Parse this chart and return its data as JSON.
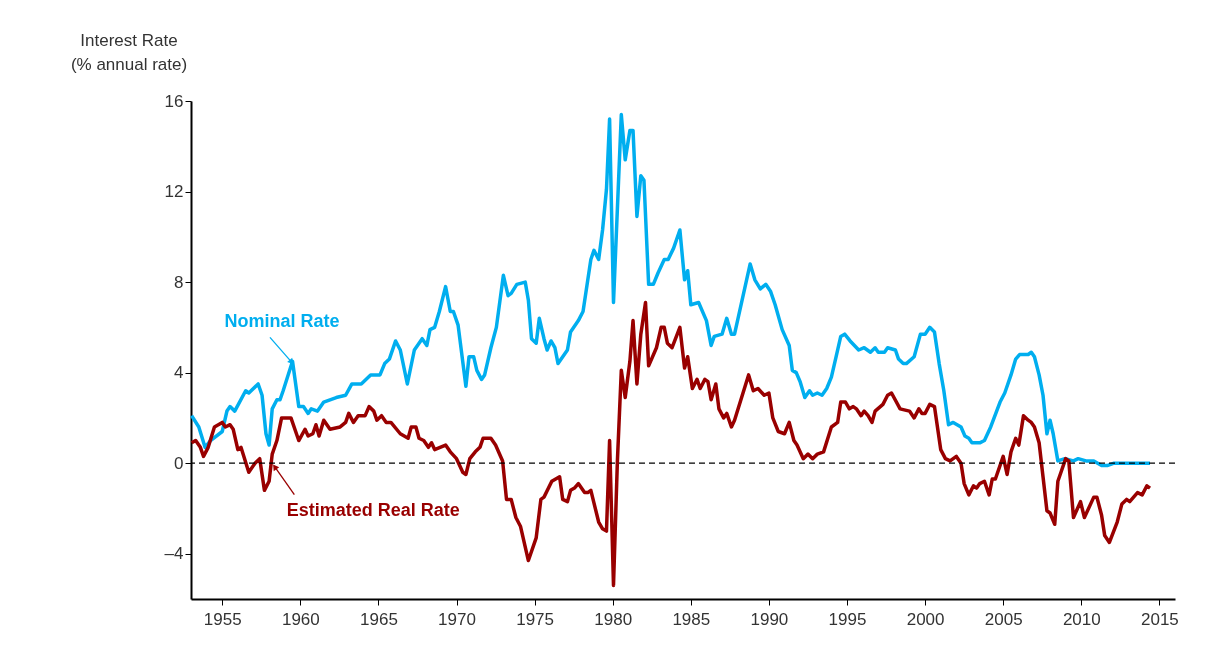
{
  "chart_data": {
    "type": "line",
    "ylabel": "Interest Rate\n(% annual rate)",
    "xlim": [
      1953,
      2016
    ],
    "xticks": [
      1955,
      1960,
      1965,
      1970,
      1975,
      1980,
      1985,
      1990,
      1995,
      2000,
      2005,
      2010,
      2015
    ],
    "ylim": [
      -6,
      16
    ],
    "yticks": [
      {
        "value": -4,
        "label": "–4"
      },
      0,
      4,
      8,
      12,
      16
    ],
    "grid": false,
    "marker": "none",
    "line_style": "solid",
    "ref_lines": [
      {
        "axis": "y",
        "value": 0,
        "color": "#000000",
        "line_style": "dashed"
      }
    ],
    "annotations": [
      {
        "text": "Nominal Rate",
        "x": 1959.4,
        "y": 4.5
      },
      {
        "text": "Estimated Real Rate",
        "x": 1958.4,
        "y": -0.2
      }
    ],
    "series": [
      {
        "color": "#00aeef",
        "x": [
          1953.04,
          1953.5,
          1953.9,
          1954.25,
          1955,
          1955.3,
          1955.5,
          1955.8,
          1956.5,
          1956.7,
          1957.3,
          1957.55,
          1957.8,
          1958.0,
          1958.2,
          1958.5,
          1958.7,
          1958.9,
          1959.5,
          1959.9,
          1960.2,
          1960.5,
          1960.7,
          1961.1,
          1961.5,
          1961.9,
          1962.3,
          1962.9,
          1963.3,
          1963.9,
          1964.5,
          1965.1,
          1965.4,
          1965.7,
          1966.1,
          1966.4,
          1966.85,
          1967.3,
          1967.8,
          1968.1,
          1968.3,
          1968.6,
          1968.9,
          1969.3,
          1969.6,
          1969.8,
          1970.1,
          1970.6,
          1970.8,
          1971.1,
          1971.3,
          1971.6,
          1971.8,
          1972.2,
          1972.55,
          1973.0,
          1973.3,
          1973.5,
          1973.86,
          1974.4,
          1974.6,
          1974.8,
          1975.1,
          1975.3,
          1975.6,
          1975.8,
          1976.05,
          1976.3,
          1976.5,
          1977.1,
          1977.3,
          1977.8,
          1978.1,
          1978.6,
          1978.8,
          1979.1,
          1979.35,
          1979.6,
          1979.8,
          1980.05,
          1980.55,
          1980.8,
          1981.1,
          1981.3,
          1981.55,
          1981.8,
          1982.0,
          1982.3,
          1982.6,
          1982.9,
          1983.3,
          1983.55,
          1983.9,
          1984.3,
          1984.6,
          1984.8,
          1985.0,
          1985.5,
          1986.0,
          1986.3,
          1986.5,
          1987.0,
          1987.3,
          1987.6,
          1987.8,
          1988.8,
          1989.1,
          1989.45,
          1989.8,
          1990.1,
          1990.4,
          1990.85,
          1991.3,
          1991.5,
          1991.75,
          1992.0,
          1992.3,
          1992.6,
          1992.8,
          1993.1,
          1993.4,
          1993.7,
          1994.0,
          1994.3,
          1994.6,
          1994.85,
          1995.2,
          1995.75,
          1996.1,
          1996.5,
          1996.8,
          1997.0,
          1997.4,
          1997.6,
          1998.1,
          1998.3,
          1998.6,
          1998.8,
          1999.3,
          1999.7,
          2000.0,
          2000.3,
          2000.6,
          2000.9,
          2001.2,
          2001.5,
          2001.8,
          2002.3,
          2002.55,
          2002.8,
          2003.0,
          2003.5,
          2003.8,
          2004.2,
          2004.8,
          2005.1,
          2005.5,
          2005.8,
          2006.05,
          2006.6,
          2006.8,
          2007.0,
          2007.3,
          2007.55,
          2007.8,
          2008.0,
          2008.2,
          2008.5,
          2008.95,
          2009.5,
          2009.8,
          2010.3,
          2010.8,
          2011.3,
          2011.7,
          2012.1,
          2012.6,
          2013.2,
          2013.8,
          2014.4
        ],
        "values": [
          2.1,
          1.6,
          0.7,
          1.0,
          1.4,
          2.3,
          2.5,
          2.3,
          3.2,
          3.1,
          3.5,
          3.0,
          1.3,
          0.8,
          2.4,
          2.8,
          2.8,
          3.2,
          4.5,
          2.5,
          2.5,
          2.2,
          2.4,
          2.3,
          2.7,
          2.8,
          2.9,
          3.0,
          3.5,
          3.5,
          3.9,
          3.9,
          4.4,
          4.6,
          5.4,
          5.0,
          3.5,
          5.0,
          5.5,
          5.2,
          5.9,
          6.0,
          6.7,
          7.8,
          6.7,
          6.7,
          6.1,
          3.4,
          4.7,
          4.7,
          4.1,
          3.7,
          3.9,
          5.1,
          6.0,
          8.3,
          7.4,
          7.5,
          7.9,
          8.0,
          7.2,
          5.5,
          5.3,
          6.4,
          5.5,
          5.0,
          5.4,
          5.1,
          4.4,
          5.0,
          5.8,
          6.3,
          6.7,
          9.0,
          9.4,
          9.0,
          10.3,
          12.1,
          15.2,
          7.1,
          15.4,
          13.4,
          14.7,
          14.7,
          10.9,
          12.7,
          12.5,
          7.9,
          7.9,
          8.4,
          9.0,
          9.0,
          9.5,
          10.3,
          8.1,
          8.5,
          7.0,
          7.1,
          6.3,
          5.2,
          5.6,
          5.7,
          6.4,
          5.7,
          5.7,
          8.8,
          8.1,
          7.7,
          7.9,
          7.6,
          7.0,
          5.9,
          5.2,
          4.1,
          4.0,
          3.6,
          2.9,
          3.2,
          3.0,
          3.1,
          3.0,
          3.3,
          3.8,
          4.7,
          5.6,
          5.7,
          5.4,
          5.0,
          5.1,
          4.9,
          5.1,
          4.9,
          4.9,
          5.1,
          5.0,
          4.6,
          4.4,
          4.4,
          4.7,
          5.7,
          5.7,
          6.0,
          5.8,
          4.4,
          3.2,
          1.7,
          1.8,
          1.6,
          1.2,
          1.1,
          0.9,
          0.9,
          1.0,
          1.6,
          2.7,
          3.1,
          3.9,
          4.6,
          4.8,
          4.8,
          4.9,
          4.7,
          3.9,
          3.0,
          1.3,
          1.9,
          1.3,
          0.1,
          0.2,
          0.1,
          0.2,
          0.1,
          0.1,
          -0.1,
          -0.1,
          0.0,
          0.0,
          0.0,
          0.0,
          0.0
        ]
      },
      {
        "color": "#990000",
        "x": [
          1953.04,
          1953.3,
          1953.6,
          1953.8,
          1954.1,
          1954.5,
          1955.0,
          1955.2,
          1955.5,
          1955.7,
          1956.0,
          1956.2,
          1956.7,
          1957.1,
          1957.4,
          1957.7,
          1958.0,
          1958.2,
          1958.5,
          1958.8,
          1959.4,
          1959.9,
          1960.3,
          1960.5,
          1960.8,
          1961.0,
          1961.2,
          1961.5,
          1961.9,
          1962.55,
          1962.9,
          1963.1,
          1963.4,
          1963.7,
          1964.15,
          1964.4,
          1964.7,
          1964.9,
          1965.2,
          1965.5,
          1965.8,
          1966.4,
          1966.9,
          1967.1,
          1967.4,
          1967.6,
          1967.9,
          1968.2,
          1968.4,
          1968.6,
          1969.3,
          1969.6,
          1970.0,
          1970.4,
          1970.6,
          1970.85,
          1971.2,
          1971.5,
          1971.7,
          1972.2,
          1972.5,
          1972.95,
          1973.2,
          1973.5,
          1973.8,
          1974.1,
          1974.6,
          1975.1,
          1975.4,
          1975.6,
          1976.1,
          1976.6,
          1976.8,
          1977.1,
          1977.3,
          1977.55,
          1977.8,
          1978.2,
          1978.4,
          1978.6,
          1979.1,
          1979.35,
          1979.6,
          1979.8,
          1980.05,
          1980.3,
          1980.55,
          1980.8,
          1981.1,
          1981.3,
          1981.55,
          1981.8,
          1982.1,
          1982.3,
          1982.8,
          1983.1,
          1983.3,
          1983.5,
          1983.8,
          1984.3,
          1984.6,
          1984.8,
          1985.1,
          1985.4,
          1985.6,
          1985.9,
          1986.1,
          1986.3,
          1986.6,
          1986.8,
          1987.1,
          1987.3,
          1987.6,
          1987.8,
          1988.7,
          1989.0,
          1989.3,
          1989.7,
          1990.0,
          1990.25,
          1990.6,
          1991.0,
          1991.3,
          1991.6,
          1991.8,
          1992.2,
          1992.5,
          1992.8,
          1993.1,
          1993.5,
          1994.0,
          1994.4,
          1994.6,
          1994.9,
          1995.15,
          1995.4,
          1995.6,
          1995.9,
          1996.1,
          1996.35,
          1996.6,
          1996.8,
          1997.3,
          1997.6,
          1997.85,
          1998.4,
          1999.0,
          1999.3,
          1999.6,
          1999.8,
          2000.0,
          2000.3,
          2000.6,
          2001.0,
          2001.3,
          2001.6,
          2002.0,
          2002.3,
          2002.5,
          2002.8,
          2003.1,
          2003.3,
          2003.5,
          2003.8,
          2004.1,
          2004.3,
          2004.5,
          2005.0,
          2005.25,
          2005.5,
          2005.8,
          2006.0,
          2006.3,
          2006.6,
          2006.8,
          2007.0,
          2007.3,
          2007.55,
          2007.8,
          2008.0,
          2008.3,
          2008.5,
          2008.7,
          2009.0,
          2009.2,
          2009.5,
          2009.95,
          2010.2,
          2010.8,
          2011.0,
          2011.3,
          2011.5,
          2011.8,
          2012.3,
          2012.6,
          2012.9,
          2013.1,
          2013.6,
          2013.9,
          2014.2,
          2014.4
        ],
        "values": [
          0.9,
          1.0,
          0.7,
          0.3,
          0.7,
          1.6,
          1.8,
          1.6,
          1.7,
          1.5,
          0.6,
          0.7,
          -0.4,
          0.0,
          0.2,
          -1.2,
          -0.8,
          0.4,
          1.0,
          2.0,
          2.0,
          1.0,
          1.5,
          1.2,
          1.3,
          1.7,
          1.2,
          1.9,
          1.5,
          1.6,
          1.8,
          2.2,
          1.8,
          2.1,
          2.1,
          2.5,
          2.3,
          1.9,
          2.1,
          1.8,
          1.8,
          1.3,
          1.1,
          1.6,
          1.6,
          1.1,
          1.0,
          0.7,
          0.9,
          0.6,
          0.8,
          0.5,
          0.2,
          -0.4,
          -0.5,
          0.2,
          0.5,
          0.7,
          1.1,
          1.1,
          0.8,
          0.1,
          -1.6,
          -1.6,
          -2.4,
          -2.8,
          -4.3,
          -3.3,
          -1.6,
          -1.5,
          -0.8,
          -0.6,
          -1.6,
          -1.7,
          -1.2,
          -1.1,
          -0.9,
          -1.3,
          -1.3,
          -1.2,
          -2.6,
          -2.9,
          -3.0,
          1.0,
          -5.4,
          0.1,
          4.1,
          2.9,
          4.5,
          6.3,
          3.5,
          5.7,
          7.1,
          4.3,
          5.1,
          6.0,
          6.0,
          5.3,
          5.1,
          6.0,
          4.2,
          4.7,
          3.3,
          3.7,
          3.3,
          3.7,
          3.6,
          2.8,
          3.5,
          2.4,
          2.0,
          2.2,
          1.6,
          1.9,
          3.9,
          3.2,
          3.3,
          3.0,
          3.1,
          2.0,
          1.4,
          1.3,
          1.8,
          1.0,
          0.8,
          0.2,
          0.4,
          0.2,
          0.4,
          0.5,
          1.6,
          1.8,
          2.7,
          2.7,
          2.4,
          2.5,
          2.4,
          2.1,
          2.3,
          2.1,
          1.8,
          2.3,
          2.6,
          3.0,
          3.1,
          2.4,
          2.3,
          2.0,
          2.4,
          2.2,
          2.2,
          2.6,
          2.5,
          0.6,
          0.2,
          0.1,
          0.3,
          0.0,
          -0.9,
          -1.4,
          -1.0,
          -1.1,
          -0.9,
          -0.8,
          -1.4,
          -0.7,
          -0.7,
          0.3,
          -0.5,
          0.5,
          1.1,
          0.8,
          2.1,
          1.9,
          1.8,
          1.6,
          0.9,
          -0.6,
          -2.1,
          -2.2,
          -2.7,
          -0.8,
          -0.4,
          0.2,
          0.1,
          -2.4,
          -1.7,
          -2.4,
          -1.5,
          -1.5,
          -2.3,
          -3.2,
          -3.5,
          -2.6,
          -1.8,
          -1.6,
          -1.7,
          -1.3,
          -1.4,
          -1.0,
          -1.1
        ]
      }
    ]
  }
}
